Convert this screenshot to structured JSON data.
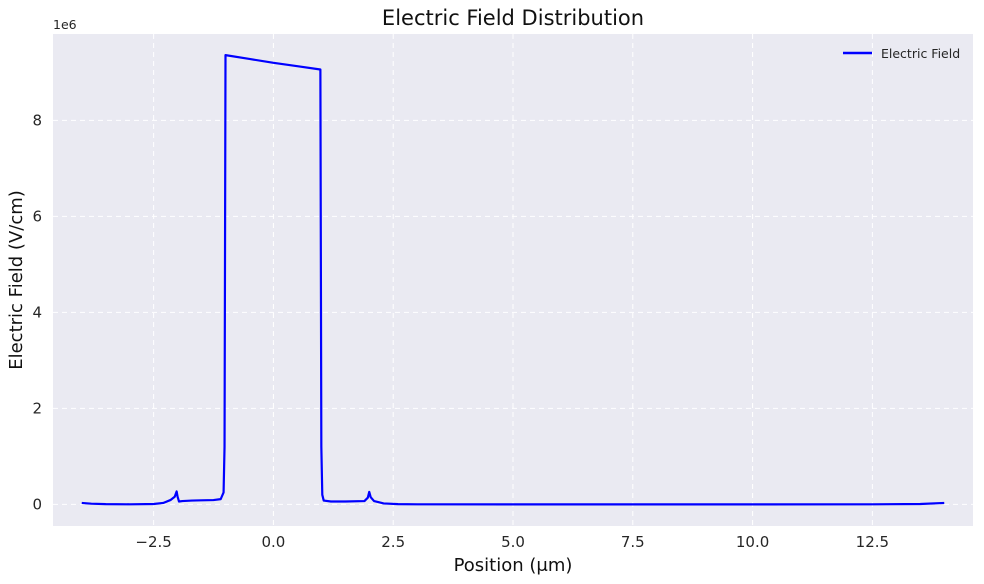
{
  "chart_data": {
    "type": "line",
    "title": "Electric Field Distribution",
    "xlabel": "Position (μm)",
    "ylabel": "Electric Field (V/cm)",
    "y_offset_label": "1e6",
    "xlim": [
      -4.6,
      14.6
    ],
    "ylim": [
      -450000,
      9800000
    ],
    "x_ticks": [
      -2.5,
      0.0,
      2.5,
      5.0,
      7.5,
      10.0,
      12.5
    ],
    "x_tick_labels": [
      "−2.5",
      "0.0",
      "2.5",
      "5.0",
      "7.5",
      "10.0",
      "12.5"
    ],
    "y_ticks": [
      0,
      2000000,
      4000000,
      6000000,
      8000000
    ],
    "y_tick_labels": [
      "0",
      "2",
      "4",
      "6",
      "8"
    ],
    "grid": true,
    "legend_position": "top-right",
    "series": [
      {
        "name": "Electric Field",
        "color": "#0000ff",
        "points": [
          [
            -4.0,
            30000
          ],
          [
            -3.8,
            15000
          ],
          [
            -3.5,
            5000
          ],
          [
            -3.0,
            2000
          ],
          [
            -2.5,
            8000
          ],
          [
            -2.3,
            30000
          ],
          [
            -2.15,
            90000
          ],
          [
            -2.06,
            160000
          ],
          [
            -2.02,
            270000
          ],
          [
            -2.0,
            160000
          ],
          [
            -1.97,
            60000
          ],
          [
            -1.9,
            70000
          ],
          [
            -1.7,
            80000
          ],
          [
            -1.5,
            85000
          ],
          [
            -1.25,
            90000
          ],
          [
            -1.1,
            110000
          ],
          [
            -1.04,
            250000
          ],
          [
            -1.02,
            1200000
          ],
          [
            -1.0,
            9360000
          ],
          [
            -0.5,
            9280000
          ],
          [
            0.0,
            9200000
          ],
          [
            0.5,
            9130000
          ],
          [
            0.98,
            9060000
          ],
          [
            1.0,
            1200000
          ],
          [
            1.02,
            200000
          ],
          [
            1.05,
            80000
          ],
          [
            1.2,
            60000
          ],
          [
            1.5,
            60000
          ],
          [
            1.9,
            70000
          ],
          [
            1.97,
            140000
          ],
          [
            2.0,
            260000
          ],
          [
            2.03,
            150000
          ],
          [
            2.1,
            70000
          ],
          [
            2.3,
            20000
          ],
          [
            2.6,
            5000
          ],
          [
            3.0,
            2000
          ],
          [
            5.0,
            1000
          ],
          [
            7.5,
            1000
          ],
          [
            10.0,
            1000
          ],
          [
            12.5,
            2000
          ],
          [
            13.5,
            8000
          ],
          [
            14.0,
            30000
          ]
        ]
      }
    ]
  },
  "colors": {
    "plot_background": "#eaeaf2",
    "grid": "#ffffff",
    "line": "#0000ff"
  }
}
